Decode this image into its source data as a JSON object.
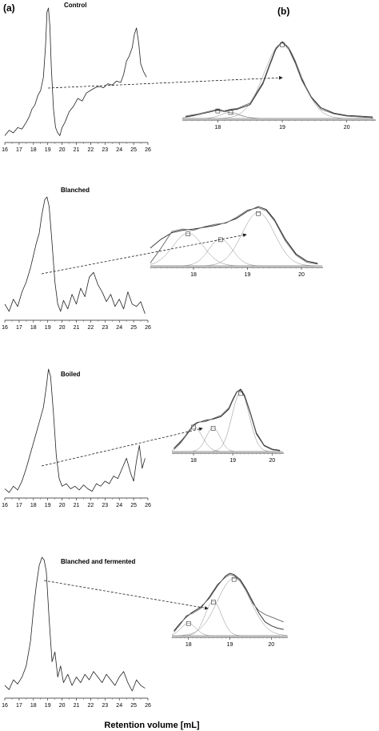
{
  "figure": {
    "panel_a_label": "(a)",
    "panel_b_label": "(b)",
    "x_axis_title": "Retention volume [mL]"
  },
  "chart_data": [
    {
      "type": "line",
      "panel": "a",
      "title": "Control",
      "x_ticks": [
        "16",
        "17",
        "18",
        "19",
        "20",
        "21",
        "22",
        "23",
        "24",
        "25",
        "26"
      ],
      "xlim": [
        16,
        26
      ],
      "ylim": [
        0,
        1
      ],
      "series": [
        {
          "x": [
            16.0,
            16.3,
            16.6,
            16.9,
            17.2,
            17.5,
            17.7,
            17.9,
            18.1,
            18.3,
            18.5,
            18.7,
            18.85,
            18.95,
            19.05,
            19.15,
            19.25,
            19.4,
            19.55,
            19.7,
            19.85,
            20.0,
            20.2,
            20.5,
            20.8,
            21.1,
            21.4,
            21.7,
            22.0,
            22.3,
            22.6,
            22.9,
            23.2,
            23.5,
            23.8,
            24.1,
            24.3,
            24.5,
            24.7,
            24.9,
            25.05,
            25.2,
            25.35,
            25.5,
            25.7,
            25.9
          ],
          "y": [
            0.04,
            0.08,
            0.06,
            0.1,
            0.09,
            0.14,
            0.18,
            0.24,
            0.27,
            0.34,
            0.38,
            0.48,
            0.72,
            0.97,
            1.0,
            0.86,
            0.55,
            0.24,
            0.1,
            0.06,
            0.04,
            0.1,
            0.14,
            0.22,
            0.26,
            0.32,
            0.3,
            0.36,
            0.38,
            0.4,
            0.41,
            0.4,
            0.43,
            0.42,
            0.45,
            0.44,
            0.5,
            0.6,
            0.64,
            0.7,
            0.8,
            0.85,
            0.74,
            0.58,
            0.52,
            0.48
          ]
        }
      ]
    },
    {
      "type": "line",
      "panel": "b",
      "title": "",
      "x_ticks": [
        "18",
        "19",
        "20"
      ],
      "xlim": [
        17.45,
        20.45
      ],
      "ylim": [
        0,
        1
      ],
      "annotations": [
        "fitted Gaussian components with square markers"
      ],
      "series": [
        {
          "x": [
            17.5,
            17.7,
            17.9,
            18.0,
            18.1,
            18.2,
            18.3,
            18.5,
            18.7,
            18.8,
            18.9,
            19.0,
            19.1,
            19.2,
            19.3,
            19.45,
            19.6,
            19.8,
            20.0,
            20.2,
            20.4
          ],
          "y": [
            0.02,
            0.05,
            0.09,
            0.11,
            0.09,
            0.11,
            0.12,
            0.18,
            0.45,
            0.68,
            0.9,
            1.0,
            0.92,
            0.74,
            0.52,
            0.28,
            0.14,
            0.07,
            0.04,
            0.03,
            0.02
          ]
        },
        {
          "x": [
            17.5,
            17.7,
            17.9,
            18.0,
            18.1,
            18.2,
            18.3,
            18.5,
            18.7,
            18.8,
            18.9,
            19.0,
            19.1,
            19.2,
            19.3,
            19.45,
            19.6,
            19.8,
            20.0,
            20.2,
            20.4
          ],
          "y": [
            0.03,
            0.06,
            0.1,
            0.12,
            0.1,
            0.12,
            0.13,
            0.2,
            0.47,
            0.7,
            0.92,
            0.99,
            0.9,
            0.72,
            0.5,
            0.27,
            0.12,
            0.06,
            0.03,
            0.02,
            0.01
          ]
        }
      ]
    },
    {
      "type": "line",
      "panel": "a",
      "title": "Blanched",
      "x_ticks": [
        "16",
        "17",
        "18",
        "19",
        "20",
        "21",
        "22",
        "23",
        "24",
        "25",
        "26"
      ],
      "xlim": [
        16,
        26
      ],
      "ylim": [
        0,
        1
      ],
      "series": [
        {
          "x": [
            16.0,
            16.3,
            16.6,
            16.9,
            17.2,
            17.5,
            17.8,
            18.0,
            18.2,
            18.4,
            18.6,
            18.8,
            18.95,
            19.1,
            19.3,
            19.5,
            19.7,
            19.9,
            20.1,
            20.4,
            20.7,
            21.0,
            21.3,
            21.6,
            21.9,
            22.2,
            22.5,
            22.8,
            23.1,
            23.4,
            23.7,
            24.0,
            24.3,
            24.6,
            24.9,
            25.2,
            25.5,
            25.8
          ],
          "y": [
            0.12,
            0.06,
            0.16,
            0.1,
            0.22,
            0.3,
            0.42,
            0.52,
            0.62,
            0.7,
            0.86,
            0.98,
            1.0,
            0.92,
            0.62,
            0.3,
            0.12,
            0.06,
            0.15,
            0.08,
            0.2,
            0.12,
            0.25,
            0.18,
            0.34,
            0.38,
            0.28,
            0.22,
            0.14,
            0.2,
            0.1,
            0.16,
            0.08,
            0.22,
            0.12,
            0.1,
            0.14,
            0.04
          ]
        }
      ]
    },
    {
      "type": "line",
      "panel": "b",
      "title": "",
      "x_ticks": [
        "18",
        "19",
        "20"
      ],
      "xlim": [
        17.2,
        20.4
      ],
      "ylim": [
        0,
        1
      ],
      "annotations": [
        "fitted Gaussian components with square markers"
      ],
      "series": [
        {
          "x": [
            17.2,
            17.4,
            17.6,
            17.8,
            18.0,
            18.2,
            18.4,
            18.6,
            18.8,
            19.0,
            19.2,
            19.35,
            19.5,
            19.7,
            19.9,
            20.1,
            20.3
          ],
          "y": [
            0.3,
            0.45,
            0.56,
            0.6,
            0.62,
            0.65,
            0.68,
            0.73,
            0.8,
            0.92,
            1.0,
            0.95,
            0.78,
            0.45,
            0.2,
            0.08,
            0.04
          ]
        },
        {
          "x": [
            17.2,
            17.4,
            17.6,
            17.8,
            18.0,
            18.2,
            18.4,
            18.6,
            18.8,
            19.0,
            19.2,
            19.35,
            19.5,
            19.7,
            19.9,
            20.1,
            20.3
          ],
          "y": [
            0.05,
            0.3,
            0.58,
            0.62,
            0.6,
            0.66,
            0.7,
            0.72,
            0.82,
            0.94,
            0.98,
            0.93,
            0.76,
            0.42,
            0.18,
            0.06,
            0.03
          ]
        }
      ]
    },
    {
      "type": "line",
      "panel": "a",
      "title": "Boiled",
      "x_ticks": [
        "16",
        "17",
        "18",
        "19",
        "20",
        "21",
        "22",
        "23",
        "24",
        "25",
        "26"
      ],
      "xlim": [
        16,
        26
      ],
      "ylim": [
        0,
        1
      ],
      "series": [
        {
          "x": [
            16.0,
            16.3,
            16.6,
            16.9,
            17.2,
            17.5,
            17.8,
            18.1,
            18.4,
            18.7,
            18.9,
            19.05,
            19.2,
            19.4,
            19.6,
            19.8,
            20.0,
            20.3,
            20.6,
            20.9,
            21.2,
            21.5,
            21.8,
            22.1,
            22.4,
            22.7,
            23.0,
            23.3,
            23.6,
            23.9,
            24.2,
            24.5,
            24.8,
            25.0,
            25.2,
            25.4,
            25.6,
            25.8
          ],
          "y": [
            0.06,
            0.03,
            0.08,
            0.05,
            0.12,
            0.22,
            0.34,
            0.46,
            0.58,
            0.7,
            0.86,
            1.0,
            0.94,
            0.65,
            0.32,
            0.14,
            0.08,
            0.1,
            0.06,
            0.08,
            0.05,
            0.09,
            0.06,
            0.04,
            0.1,
            0.08,
            0.12,
            0.1,
            0.16,
            0.14,
            0.22,
            0.3,
            0.18,
            0.12,
            0.28,
            0.4,
            0.22,
            0.3
          ]
        }
      ]
    },
    {
      "type": "line",
      "panel": "b",
      "title": "",
      "x_ticks": [
        "18",
        "19",
        "20"
      ],
      "xlim": [
        17.45,
        20.3
      ],
      "ylim": [
        0,
        1
      ],
      "annotations": [
        "fitted Gaussian components with square markers"
      ],
      "series": [
        {
          "x": [
            17.5,
            17.7,
            17.9,
            18.0,
            18.1,
            18.3,
            18.5,
            18.7,
            18.9,
            19.0,
            19.1,
            19.2,
            19.3,
            19.45,
            19.6,
            19.8,
            20.0,
            20.2
          ],
          "y": [
            0.05,
            0.18,
            0.34,
            0.42,
            0.46,
            0.5,
            0.52,
            0.56,
            0.68,
            0.82,
            0.95,
            1.0,
            0.9,
            0.62,
            0.3,
            0.1,
            0.04,
            0.02
          ]
        },
        {
          "x": [
            17.5,
            17.7,
            17.9,
            18.0,
            18.1,
            18.3,
            18.5,
            18.7,
            18.9,
            19.0,
            19.1,
            19.2,
            19.3,
            19.45,
            19.6,
            19.8,
            20.0,
            20.2
          ],
          "y": [
            0.04,
            0.16,
            0.33,
            0.43,
            0.47,
            0.48,
            0.53,
            0.58,
            0.7,
            0.84,
            0.96,
            0.98,
            0.88,
            0.6,
            0.28,
            0.09,
            0.03,
            0.01
          ]
        }
      ]
    },
    {
      "type": "line",
      "panel": "a",
      "title": "Blanched and fermented",
      "x_ticks": [
        "16",
        "17",
        "18",
        "19",
        "20",
        "21",
        "22",
        "23",
        "24",
        "25",
        "26"
      ],
      "xlim": [
        16,
        26
      ],
      "ylim": [
        0,
        1
      ],
      "series": [
        {
          "x": [
            16.0,
            16.3,
            16.6,
            16.9,
            17.2,
            17.5,
            17.8,
            18.0,
            18.2,
            18.4,
            18.6,
            18.75,
            18.9,
            19.1,
            19.3,
            19.5,
            19.7,
            19.9,
            20.1,
            20.4,
            20.7,
            21.0,
            21.3,
            21.6,
            21.9,
            22.2,
            22.5,
            22.8,
            23.1,
            23.4,
            23.7,
            24.0,
            24.3,
            24.6,
            24.9,
            25.2,
            25.5,
            25.8
          ],
          "y": [
            0.08,
            0.05,
            0.12,
            0.09,
            0.14,
            0.22,
            0.4,
            0.62,
            0.8,
            0.94,
            1.0,
            0.98,
            0.9,
            0.55,
            0.25,
            0.32,
            0.14,
            0.22,
            0.1,
            0.16,
            0.08,
            0.14,
            0.1,
            0.16,
            0.12,
            0.18,
            0.14,
            0.1,
            0.16,
            0.12,
            0.08,
            0.14,
            0.18,
            0.1,
            0.04,
            0.12,
            0.08,
            0.06
          ]
        }
      ]
    },
    {
      "type": "line",
      "panel": "b",
      "title": "",
      "x_ticks": [
        "18",
        "19",
        "20"
      ],
      "xlim": [
        17.6,
        20.4
      ],
      "ylim": [
        0,
        1
      ],
      "annotations": [
        "fitted Gaussian components with square markers"
      ],
      "series": [
        {
          "x": [
            17.65,
            17.8,
            17.95,
            18.1,
            18.3,
            18.5,
            18.7,
            18.9,
            19.0,
            19.1,
            19.25,
            19.4,
            19.55,
            19.7,
            19.85,
            20.0,
            20.15,
            20.3
          ],
          "y": [
            0.08,
            0.2,
            0.3,
            0.38,
            0.46,
            0.6,
            0.8,
            0.96,
            1.0,
            0.98,
            0.9,
            0.74,
            0.55,
            0.36,
            0.22,
            0.16,
            0.12,
            0.1
          ]
        },
        {
          "x": [
            17.65,
            17.8,
            17.95,
            18.1,
            18.3,
            18.5,
            18.7,
            18.9,
            19.0,
            19.1,
            19.25,
            19.4,
            19.55,
            19.7,
            19.85,
            20.0,
            20.15,
            20.3
          ],
          "y": [
            0.06,
            0.18,
            0.32,
            0.36,
            0.44,
            0.62,
            0.82,
            0.94,
            0.98,
            0.96,
            0.88,
            0.72,
            0.52,
            0.4,
            0.34,
            0.3,
            0.26,
            0.22
          ]
        }
      ]
    }
  ]
}
